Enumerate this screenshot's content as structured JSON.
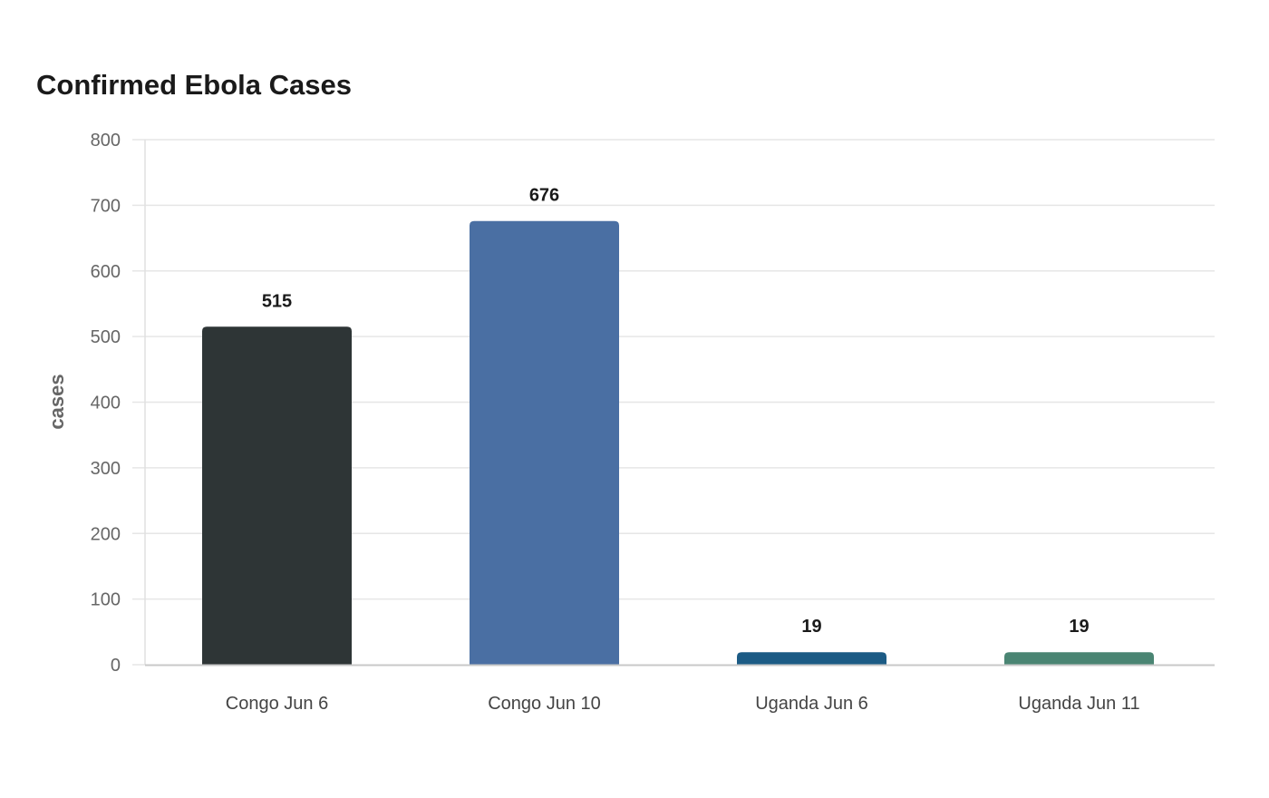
{
  "chart_data": {
    "type": "bar",
    "title": "Confirmed Ebola Cases",
    "xlabel": "",
    "ylabel": "cases",
    "categories": [
      "Congo Jun 6",
      "Congo Jun 10",
      "Uganda Jun 6",
      "Uganda Jun 11"
    ],
    "values": [
      515,
      676,
      19,
      19
    ],
    "bar_colors": [
      "#2e3536",
      "#4a6fa3",
      "#1c5b85",
      "#4a8573"
    ],
    "ylim": [
      0,
      800
    ],
    "yticks": [
      0,
      100,
      200,
      300,
      400,
      500,
      600,
      700,
      800
    ],
    "grid": true,
    "legend": "none",
    "data_labels": true
  }
}
